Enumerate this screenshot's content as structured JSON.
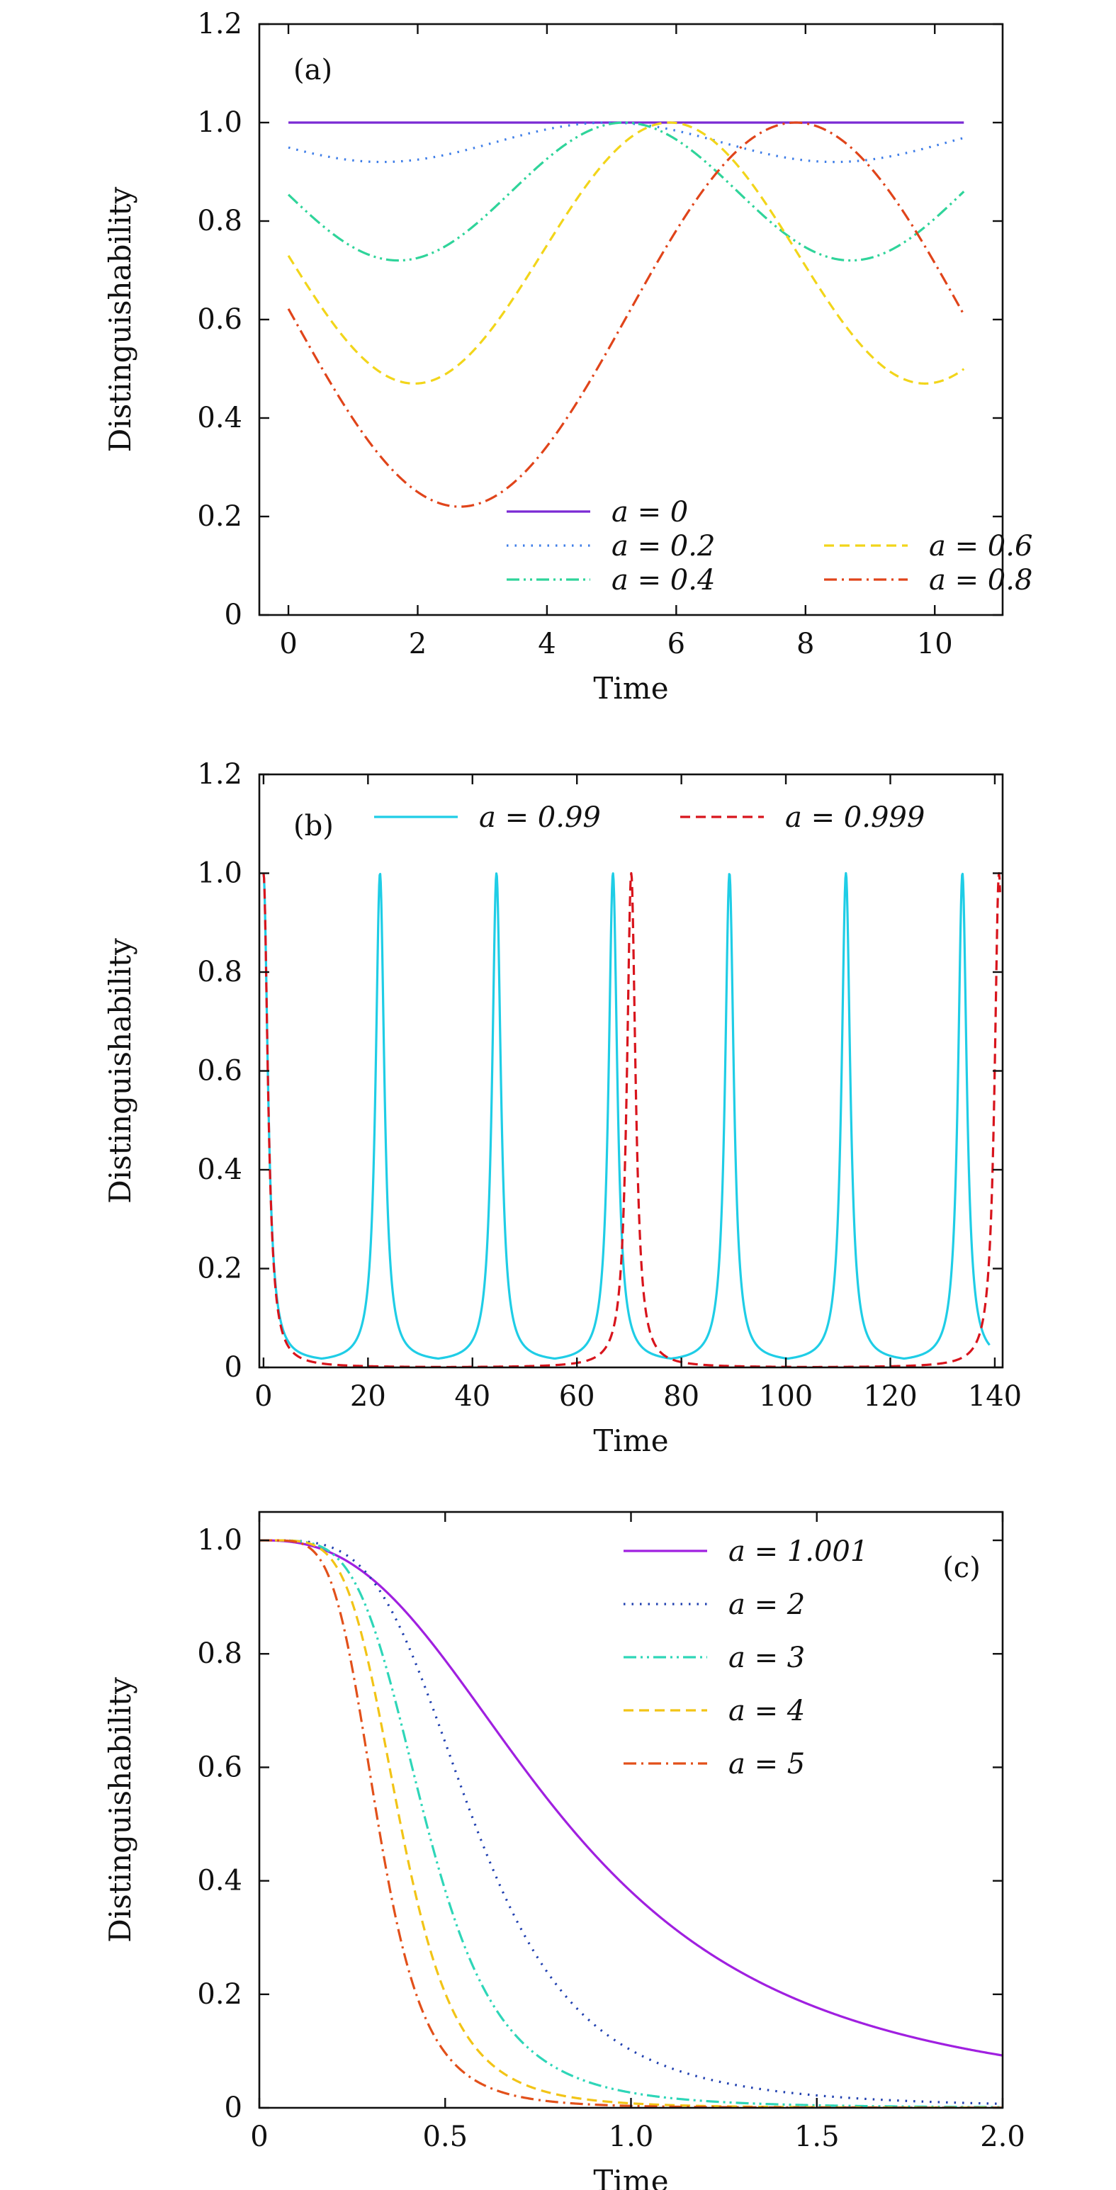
{
  "chart_data": [
    {
      "type": "line",
      "panel_label": "(a)",
      "xlabel": "Time",
      "ylabel": "Distinguishability",
      "xlim": [
        -0.45,
        11.05
      ],
      "ylim": [
        0,
        1.2
      ],
      "xticks": [
        0,
        2,
        4,
        6,
        8,
        10
      ],
      "xtick_labels": [
        "0",
        "2",
        "4",
        "6",
        "8",
        "10"
      ],
      "yticks": [
        0,
        0.2,
        0.4,
        0.6,
        0.8,
        1.0,
        1.2
      ],
      "ytick_labels": [
        "0",
        "0.2",
        "0.4",
        "0.6",
        "0.8",
        "1.0",
        "1.2"
      ],
      "legend_position": "bottom-center",
      "series": [
        {
          "name": "a = 0",
          "legend": "a = 0",
          "color": "#7b2ad4",
          "dash": "solid",
          "model": "periodic",
          "params": {
            "min": 1.0,
            "period": 7.0,
            "t_min": 1.7,
            "t_end": 10.45
          }
        },
        {
          "name": "a = 0.2",
          "legend": "a = 0.2",
          "color": "#3f7ee8",
          "dash": "dotted",
          "model": "periodic",
          "params": {
            "min": 0.92,
            "period": 7.0,
            "t_min": 1.45,
            "t_end": 10.45
          }
        },
        {
          "name": "a = 0.4",
          "legend": "a = 0.4",
          "color": "#2fd49a",
          "dash": "dashdotdot",
          "model": "periodic",
          "params": {
            "min": 0.72,
            "period": 7.0,
            "t_min": 1.7,
            "t_end": 10.45
          }
        },
        {
          "name": "a = 0.6",
          "legend": "a = 0.6",
          "color": "#f2d51a",
          "dash": "dashed",
          "model": "periodic",
          "params": {
            "min": 0.47,
            "period": 7.9,
            "t_min": 1.95,
            "t_end": 10.45
          }
        },
        {
          "name": "a = 0.8",
          "legend": "a = 0.8",
          "color": "#e0441a",
          "dash": "dashdot",
          "model": "periodic",
          "params": {
            "min": 0.22,
            "period": 10.4,
            "t_min": 2.65,
            "t_end": 10.45
          }
        }
      ]
    },
    {
      "type": "line",
      "panel_label": "(b)",
      "xlabel": "Time",
      "ylabel": "Distinguishability",
      "xlim": [
        -0.8,
        141.5
      ],
      "ylim": [
        0,
        1.2
      ],
      "xticks": [
        0,
        20,
        40,
        60,
        80,
        100,
        120,
        140
      ],
      "xtick_labels": [
        "0",
        "20",
        "40",
        "60",
        "80",
        "100",
        "120",
        "140"
      ],
      "yticks": [
        0,
        0.2,
        0.4,
        0.6,
        0.8,
        1.0,
        1.2
      ],
      "ytick_labels": [
        "0",
        "0.2",
        "0.4",
        "0.6",
        "0.8",
        "1.0",
        "1.2"
      ],
      "legend_position": "top",
      "series": [
        {
          "name": "a = 0.99",
          "legend": "a = 0.99",
          "color": "#1fcde6",
          "dash": "solid",
          "model": "peaks",
          "params": {
            "period": 22.3,
            "peak_width": 1.0,
            "baseline": 0.01,
            "t_end": 139.0
          }
        },
        {
          "name": "a = 0.999",
          "legend": "a = 0.999",
          "color": "#d8141c",
          "dash": "dashed",
          "model": "peaks",
          "params": {
            "period": 70.4,
            "peak_width": 1.0,
            "baseline": 0.0,
            "t_end": 141.0
          }
        }
      ]
    },
    {
      "type": "line",
      "panel_label": "(c)",
      "xlabel": "Time",
      "ylabel": "Distinguishability",
      "xlim": [
        0,
        2.0
      ],
      "ylim": [
        0,
        1.05
      ],
      "xticks": [
        0,
        0.5,
        1.0,
        1.5,
        2.0
      ],
      "xtick_labels": [
        "0",
        "0.5",
        "1.0",
        "1.5",
        "2.0"
      ],
      "yticks": [
        0,
        0.2,
        0.4,
        0.6,
        0.8,
        1.0
      ],
      "ytick_labels": [
        "0",
        "0.2",
        "0.4",
        "0.6",
        "0.8",
        "1.0"
      ],
      "legend_position": "top-right",
      "series": [
        {
          "name": "a = 1.001",
          "legend": "a = 1.001",
          "color": "#a020e0",
          "dash": "solid",
          "model": "decay",
          "params": {
            "t_half": 0.83,
            "exponent": 2.6
          }
        },
        {
          "name": "a = 2",
          "legend": "a = 2",
          "color": "#2040b0",
          "dash": "dotted",
          "model": "decay",
          "params": {
            "t_half": 0.58,
            "exponent": 4.0
          }
        },
        {
          "name": "a = 3",
          "legend": "a = 3",
          "color": "#2ed6b8",
          "dash": "dashdotdot",
          "model": "decay",
          "params": {
            "t_half": 0.45,
            "exponent": 4.5
          }
        },
        {
          "name": "a = 4",
          "legend": "a = 4",
          "color": "#f2c416",
          "dash": "dashed",
          "model": "decay",
          "params": {
            "t_half": 0.38,
            "exponent": 5.0
          }
        },
        {
          "name": "a = 5",
          "legend": "a = 5",
          "color": "#e2501a",
          "dash": "dashdot",
          "model": "decay",
          "params": {
            "t_half": 0.32,
            "exponent": 5.0
          }
        }
      ]
    }
  ]
}
